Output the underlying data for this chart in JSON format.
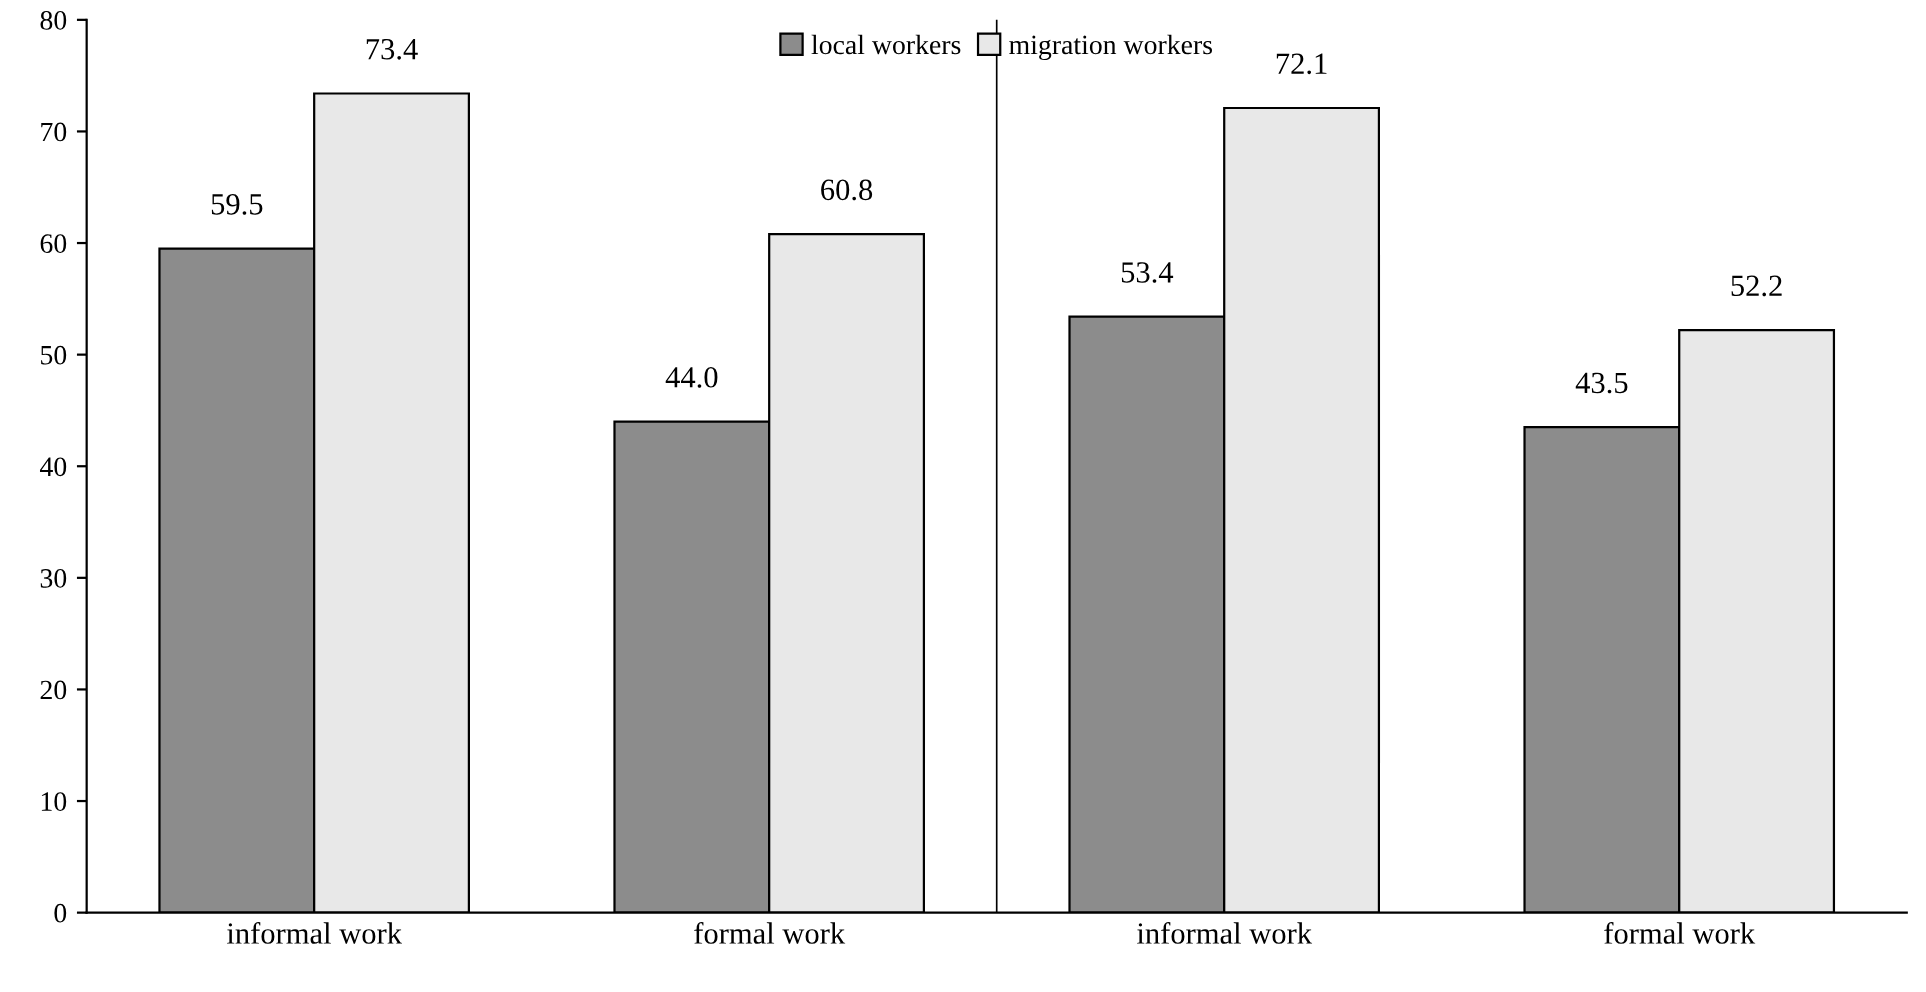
{
  "chart_data": {
    "type": "bar",
    "categories": [
      "informal work",
      "formal work",
      "informal work",
      "formal work"
    ],
    "series": [
      {
        "name": "local workers",
        "color": "#8c8c8c",
        "values": [
          59.5,
          44.0,
          53.4,
          43.5
        ],
        "value_labels": [
          "59.5",
          "44.0",
          "53.4",
          "43.5"
        ]
      },
      {
        "name": "migration workers",
        "color": "#e8e8e8",
        "values": [
          73.4,
          60.8,
          72.1,
          52.2
        ],
        "value_labels": [
          "73.4",
          "60.8",
          "72.1",
          "52.2"
        ]
      }
    ],
    "ylim": [
      0,
      80
    ],
    "yticks": [
      0,
      10,
      20,
      30,
      40,
      50,
      60,
      70,
      80
    ],
    "grid": false,
    "legend": "top"
  }
}
